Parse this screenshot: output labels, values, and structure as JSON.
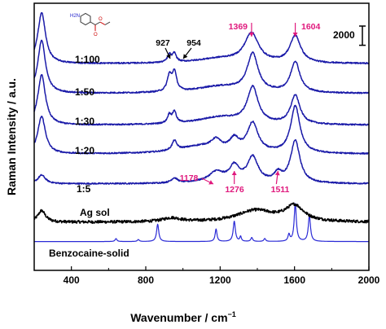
{
  "chart_data": {
    "type": "line",
    "xlabel": "Wavenumber / cm",
    "xlabel_sup": "−1",
    "ylabel": "Raman Intensity / a.u.",
    "xlim": [
      200,
      2000
    ],
    "x_ticks": [
      400,
      800,
      1200,
      1600,
      2000
    ],
    "x_tick_labels": [
      "400",
      "800",
      "1200",
      "1600",
      "2000"
    ],
    "ylim": [
      -2800,
      25000
    ],
    "scale_bar": {
      "label": "2000",
      "value": 2000
    },
    "colors": {
      "blue": "#1a1aa8",
      "dark_blue": "#202080",
      "black": "#000000",
      "pink": "#e0197d"
    },
    "series": [
      {
        "name": "Benzocaine-solid",
        "color": "#2a2ad6",
        "offset": 0,
        "baseline": 200,
        "noise": 0,
        "peaks": [
          [
            1604,
            3900,
            7
          ],
          [
            1680,
            2700,
            7
          ],
          [
            1276,
            2100,
            7
          ],
          [
            864,
            1800,
            7
          ],
          [
            1178,
            1300,
            6
          ],
          [
            1310,
            500,
            5
          ],
          [
            1570,
            700,
            6
          ],
          [
            1370,
            400,
            6
          ],
          [
            1440,
            300,
            6
          ],
          [
            640,
            300,
            6
          ],
          [
            760,
            200,
            6
          ]
        ]
      },
      {
        "name": "Ag sol",
        "color": "#000000",
        "offset": 2200,
        "baseline": 0,
        "noise": 300,
        "peaks": [
          [
            240,
            1200,
            25
          ],
          [
            1390,
            1200,
            120
          ],
          [
            1600,
            1600,
            60
          ],
          [
            940,
            400,
            60
          ]
        ]
      },
      {
        "name": "1:5",
        "color": "#1a1aa8",
        "offset": 6200,
        "baseline": 0,
        "noise": 140,
        "peaks": [
          [
            240,
            900,
            25
          ],
          [
            1178,
            800,
            40
          ],
          [
            1276,
            1500,
            30
          ],
          [
            1375,
            2600,
            35
          ],
          [
            1511,
            900,
            25
          ],
          [
            1604,
            4400,
            30
          ],
          [
            954,
            500,
            20
          ],
          [
            1200,
            400,
            120
          ]
        ]
      },
      {
        "name": "1:20",
        "color": "#1a1aa8",
        "offset": 9300,
        "baseline": 0,
        "noise": 140,
        "peaks": [
          [
            240,
            3900,
            25
          ],
          [
            954,
            1000,
            15
          ],
          [
            1178,
            900,
            30
          ],
          [
            1276,
            1200,
            30
          ],
          [
            1375,
            3000,
            35
          ],
          [
            1604,
            4900,
            30
          ],
          [
            1100,
            800,
            150
          ]
        ]
      },
      {
        "name": "1:30",
        "color": "#1a1aa8",
        "offset": 12300,
        "baseline": 0,
        "noise": 140,
        "peaks": [
          [
            240,
            5200,
            25
          ],
          [
            927,
            900,
            12
          ],
          [
            954,
            1200,
            12
          ],
          [
            1375,
            3700,
            35
          ],
          [
            1604,
            3000,
            30
          ],
          [
            1200,
            800,
            150
          ]
        ]
      },
      {
        "name": "1:50",
        "color": "#1a1aa8",
        "offset": 15600,
        "baseline": 0,
        "noise": 140,
        "peaks": [
          [
            240,
            5500,
            25
          ],
          [
            927,
            1600,
            14
          ],
          [
            954,
            2000,
            14
          ],
          [
            1375,
            3900,
            35
          ],
          [
            1604,
            3200,
            30
          ],
          [
            1200,
            700,
            160
          ]
        ]
      },
      {
        "name": "1:100",
        "color": "#1a1aa8",
        "offset": 18700,
        "baseline": 0,
        "noise": 140,
        "peaks": [
          [
            240,
            5300,
            25
          ],
          [
            927,
            800,
            12
          ],
          [
            954,
            900,
            12
          ],
          [
            1369,
            3000,
            45
          ],
          [
            1604,
            2800,
            35
          ],
          [
            1200,
            500,
            160
          ]
        ]
      }
    ],
    "annotations": {
      "black_peaks": [
        {
          "x": 927,
          "label": "927"
        },
        {
          "x": 954,
          "label": "954"
        }
      ],
      "pink_top": [
        {
          "x": 1369,
          "label": "1369"
        },
        {
          "x": 1604,
          "label": "1604"
        }
      ],
      "pink_low": [
        {
          "x": 1178,
          "label": "1178"
        },
        {
          "x": 1276,
          "label": "1276"
        },
        {
          "x": 1511,
          "label": "1511"
        }
      ]
    },
    "molecule": {
      "atom_labels": [
        "H2N",
        "O",
        "O"
      ]
    }
  }
}
